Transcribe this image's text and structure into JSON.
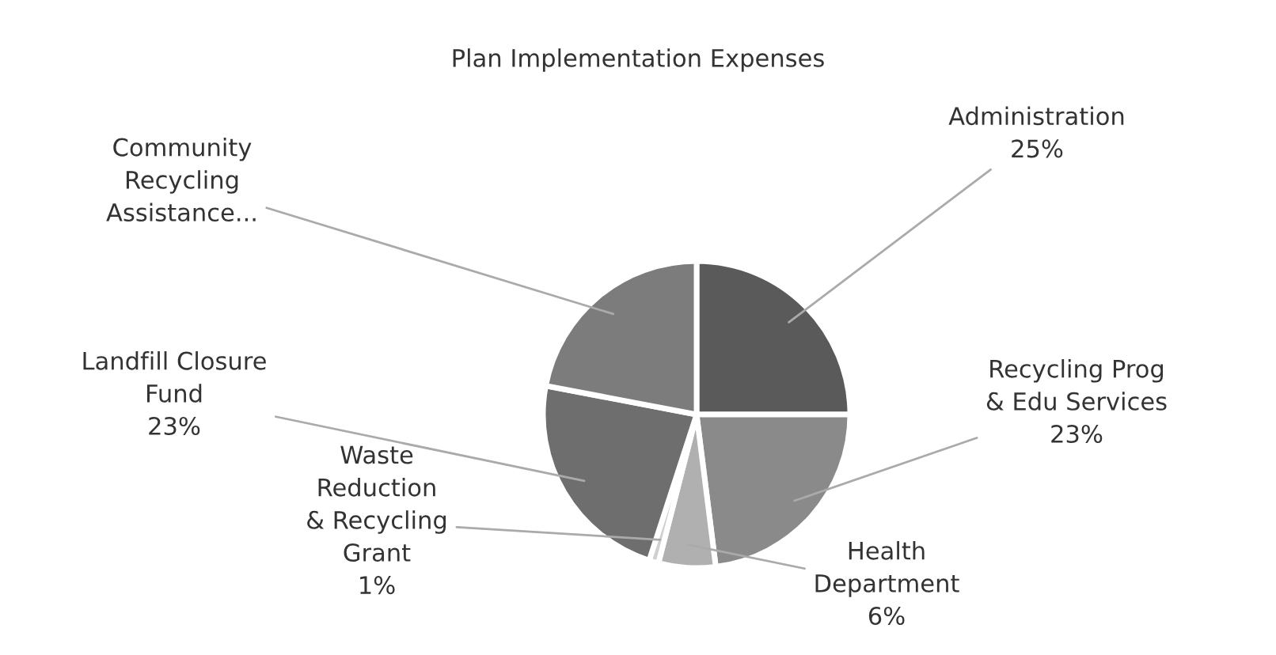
{
  "chart_data": {
    "type": "pie",
    "title": "Plan Implementation Expenses",
    "categories": [
      "Administration",
      "Recycling Prog\n& Edu Services",
      "Health\nDepartment",
      "Waste\nReduction\n& Recycling\nGrant",
      "Landfill Closure\nFund",
      "Community\nRecycling\nAssistance..."
    ],
    "values": [
      25,
      23,
      6,
      1,
      23,
      22
    ],
    "value_labels": [
      "25%",
      "23%",
      "6%",
      "1%",
      "23%",
      null
    ],
    "colors": [
      "#5a5a5a",
      "#8a8a8a",
      "#b0b0b0",
      "#d0d0d0",
      "#6e6e6e",
      "#7c7c7c"
    ],
    "legend": false
  }
}
